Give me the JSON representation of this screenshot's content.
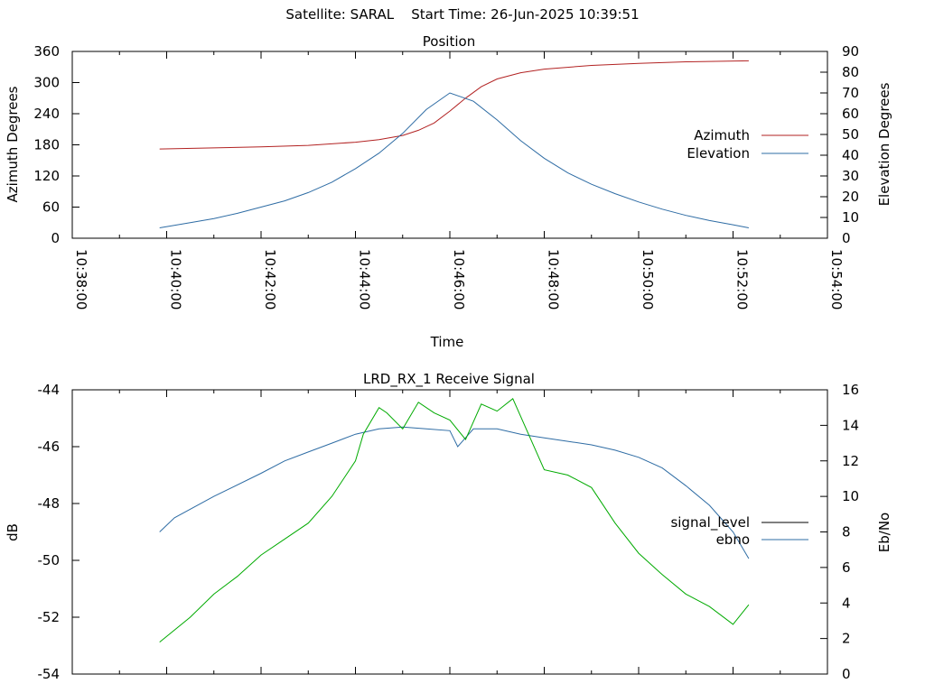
{
  "header": {
    "satellite_label": "Satellite: SARAL",
    "start_time_label": "Start Time: 26-Jun-2025 10:39:51"
  },
  "colors": {
    "azimuth": "#b22222",
    "elevation": "#2e6ca4",
    "signal_level": "#000000",
    "ebno": "#2e6ca4",
    "ebno_trace": "#00aa00"
  },
  "chart_data": [
    {
      "type": "line",
      "title": "Position",
      "xlabel": "Time",
      "ylabel": "Azimuth Degrees",
      "y2label": "Elevation Degrees",
      "xlim": [
        "10:38:00",
        "10:54:00"
      ],
      "ylim": [
        0,
        360
      ],
      "y2lim": [
        0,
        90
      ],
      "xtick_labels": [
        "10:38:00",
        "10:40:00",
        "10:42:00",
        "10:44:00",
        "10:46:00",
        "10:48:00",
        "10:50:00",
        "10:52:00",
        "10:54:00"
      ],
      "ytick_labels": [
        "0",
        "60",
        "120",
        "180",
        "240",
        "300",
        "360"
      ],
      "y2tick_labels": [
        "0",
        "10",
        "20",
        "30",
        "40",
        "50",
        "60",
        "70",
        "80",
        "90"
      ],
      "grid": false,
      "legend": "right",
      "series": [
        {
          "name": "Azimuth",
          "axis": "y",
          "x": [
            "10:39:51",
            "10:41:00",
            "10:42:00",
            "10:43:00",
            "10:44:00",
            "10:44:30",
            "10:45:00",
            "10:45:20",
            "10:45:40",
            "10:46:00",
            "10:46:20",
            "10:46:40",
            "10:47:00",
            "10:47:30",
            "10:48:00",
            "10:49:00",
            "10:50:00",
            "10:51:00",
            "10:52:20"
          ],
          "values": [
            172,
            174,
            176,
            179,
            185,
            190,
            198,
            208,
            222,
            245,
            270,
            292,
            307,
            319,
            326,
            333,
            337,
            340,
            342
          ]
        },
        {
          "name": "Elevation",
          "axis": "y2",
          "x": [
            "10:39:51",
            "10:40:30",
            "10:41:00",
            "10:41:30",
            "10:42:00",
            "10:42:30",
            "10:43:00",
            "10:43:30",
            "10:44:00",
            "10:44:30",
            "10:45:00",
            "10:45:30",
            "10:46:00",
            "10:46:30",
            "10:47:00",
            "10:47:30",
            "10:48:00",
            "10:48:30",
            "10:49:00",
            "10:49:30",
            "10:50:00",
            "10:50:30",
            "10:51:00",
            "10:51:30",
            "10:52:00",
            "10:52:20"
          ],
          "values": [
            5,
            7.5,
            9.5,
            12,
            15,
            18,
            22,
            27,
            33.5,
            41,
            50.5,
            62,
            70,
            66,
            57,
            47,
            38.5,
            31.5,
            26,
            21.5,
            17.5,
            14,
            11,
            8.5,
            6.5,
            5
          ]
        }
      ]
    },
    {
      "type": "line",
      "title": "LRD_RX_1 Receive Signal",
      "xlabel": "",
      "ylabel": "dB",
      "y2label": "Eb/No",
      "xlim": [
        "10:38:00",
        "10:54:00"
      ],
      "ylim": [
        -54,
        -44
      ],
      "y2lim": [
        0,
        16
      ],
      "ytick_labels": [
        "-54",
        "-52",
        "-50",
        "-48",
        "-46",
        "-44"
      ],
      "y2tick_labels": [
        "0",
        "2",
        "4",
        "6",
        "8",
        "10",
        "12",
        "14",
        "16"
      ],
      "grid": false,
      "legend": "right",
      "series": [
        {
          "name": "signal_level",
          "axis": "y",
          "x": [],
          "values": []
        },
        {
          "name": "ebno",
          "axis": "y2",
          "x": [
            "10:39:51",
            "10:40:10",
            "10:41:00",
            "10:42:00",
            "10:42:30",
            "10:43:00",
            "10:43:30",
            "10:44:00",
            "10:44:30",
            "10:45:00",
            "10:45:30",
            "10:46:00",
            "10:46:10",
            "10:46:30",
            "10:47:00",
            "10:47:30",
            "10:48:00",
            "10:48:30",
            "10:49:00",
            "10:49:30",
            "10:50:00",
            "10:50:30",
            "10:51:00",
            "10:51:30",
            "10:52:00",
            "10:52:20"
          ],
          "values": [
            8,
            8.8,
            10,
            11.3,
            12,
            12.5,
            13,
            13.5,
            13.8,
            13.9,
            13.8,
            13.7,
            12.8,
            13.8,
            13.8,
            13.5,
            13.3,
            13.1,
            12.9,
            12.6,
            12.2,
            11.6,
            10.6,
            9.5,
            8,
            6.5
          ]
        },
        {
          "name": "",
          "axis": "y2",
          "x": [
            "10:39:51",
            "10:40:30",
            "10:41:00",
            "10:41:30",
            "10:42:00",
            "10:42:30",
            "10:43:00",
            "10:43:30",
            "10:44:00",
            "10:44:10",
            "10:44:30",
            "10:44:40",
            "10:45:00",
            "10:45:20",
            "10:45:40",
            "10:46:00",
            "10:46:20",
            "10:46:40",
            "10:47:00",
            "10:47:20",
            "10:47:40",
            "10:48:00",
            "10:48:30",
            "10:49:00",
            "10:49:30",
            "10:50:00",
            "10:50:30",
            "10:51:00",
            "10:51:30",
            "10:52:00",
            "10:52:20"
          ],
          "values": [
            1.8,
            3.2,
            4.5,
            5.5,
            6.7,
            7.6,
            8.5,
            10,
            12,
            13.5,
            15,
            14.7,
            13.8,
            15.3,
            14.7,
            14.3,
            13.2,
            15.2,
            14.8,
            15.5,
            13.5,
            11.5,
            11.2,
            10.5,
            8.5,
            6.8,
            5.6,
            4.5,
            3.8,
            2.8,
            3.9
          ]
        }
      ]
    }
  ]
}
